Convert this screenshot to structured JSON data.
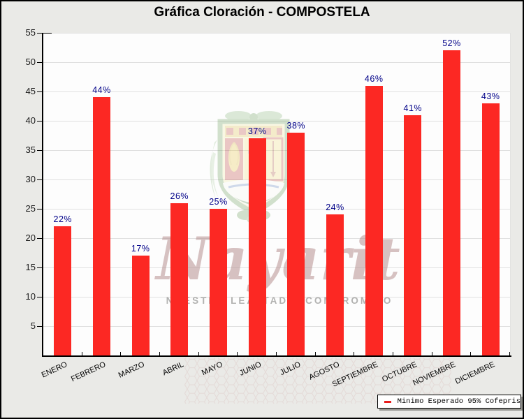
{
  "title": "Gráfica Cloración - COMPOSTELA",
  "chart_data": {
    "type": "bar",
    "title": "Gráfica Cloración - COMPOSTELA",
    "categories": [
      "ENERO",
      "FEBRERO",
      "MARZO",
      "ABRIL",
      "MAYO",
      "JUNIO",
      "JULIO",
      "AGOSTO",
      "SEPTIEMBRE",
      "OCTUBRE",
      "NOVIEMBRE",
      "DICIEMBRE"
    ],
    "values": [
      22,
      44,
      17,
      26,
      25,
      37,
      38,
      24,
      46,
      41,
      52,
      43
    ],
    "value_labels": [
      "22%",
      "44%",
      "17%",
      "26%",
      "25%",
      "37%",
      "38%",
      "24%",
      "46%",
      "41%",
      "52%",
      "43%"
    ],
    "ylim": [
      0,
      55
    ],
    "yticks": [
      5,
      10,
      15,
      20,
      25,
      30,
      35,
      40,
      45,
      50,
      55
    ],
    "grid": "horizontal",
    "bar_color": "#fc2823",
    "value_label_color": "#000088",
    "legend_position": "bottom-right",
    "legend": {
      "entries": [
        {
          "marker": "line",
          "color": "#e81c1c",
          "label": "Minimo Esperado 95% Cofepris"
        }
      ]
    }
  },
  "watermark": {
    "script_text": "Nayarit",
    "slogan": "NUESTRA LEALTAD Y COMPROMISO"
  },
  "colors": {
    "canvas_bg": "#eaeae7",
    "plot_bg": "#fdfdfd",
    "grid": "#e0e0e0",
    "axis": "#000000"
  }
}
